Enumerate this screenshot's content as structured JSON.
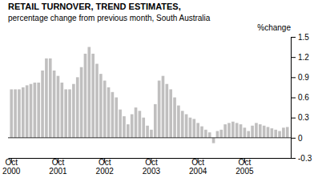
{
  "chart_data": {
    "type": "bar",
    "title": "RETAIL TURNOVER, TREND ESTIMATES,",
    "subtitle": "percentage change from previous month, South Australia",
    "y_label": "%change",
    "categories": [
      "Oct\n2000",
      null,
      null,
      null,
      null,
      null,
      null,
      null,
      null,
      null,
      null,
      null,
      "Oct\n2001",
      null,
      null,
      null,
      null,
      null,
      null,
      null,
      null,
      null,
      null,
      null,
      "Oct\n2002",
      null,
      null,
      null,
      null,
      null,
      null,
      null,
      null,
      null,
      null,
      null,
      "Oct\n2003",
      null,
      null,
      null,
      null,
      null,
      null,
      null,
      null,
      null,
      null,
      null,
      "Oct\n2004",
      null,
      null,
      null,
      null,
      null,
      null,
      null,
      null,
      null,
      null,
      null,
      "Oct\n2005",
      null,
      null,
      null,
      null,
      null,
      null,
      null,
      null,
      null,
      null,
      null
    ],
    "values": [
      0.72,
      0.72,
      0.72,
      0.75,
      0.78,
      0.8,
      0.82,
      0.82,
      1.0,
      1.18,
      1.18,
      1.0,
      0.92,
      0.82,
      0.72,
      0.72,
      0.8,
      0.9,
      1.05,
      1.25,
      1.35,
      1.25,
      1.1,
      0.95,
      0.85,
      0.75,
      0.68,
      0.6,
      0.42,
      0.32,
      0.2,
      0.35,
      0.45,
      0.4,
      0.3,
      0.18,
      0.12,
      0.5,
      0.85,
      0.92,
      0.8,
      0.72,
      0.6,
      0.48,
      0.4,
      0.35,
      0.3,
      0.28,
      0.22,
      0.17,
      0.12,
      0.08,
      -0.08,
      0.1,
      0.12,
      0.2,
      0.22,
      0.24,
      0.22,
      0.2,
      0.15,
      0.1,
      0.18,
      0.22,
      0.2,
      0.18,
      0.16,
      0.14,
      0.12,
      0.1,
      0.15,
      0.16
    ],
    "color": "#c0bfbf",
    "ylim": [
      -0.3,
      1.5
    ],
    "yticks": [
      -0.3,
      0,
      0.3,
      0.6,
      0.9,
      1.2,
      1.5
    ],
    "grid": false
  }
}
